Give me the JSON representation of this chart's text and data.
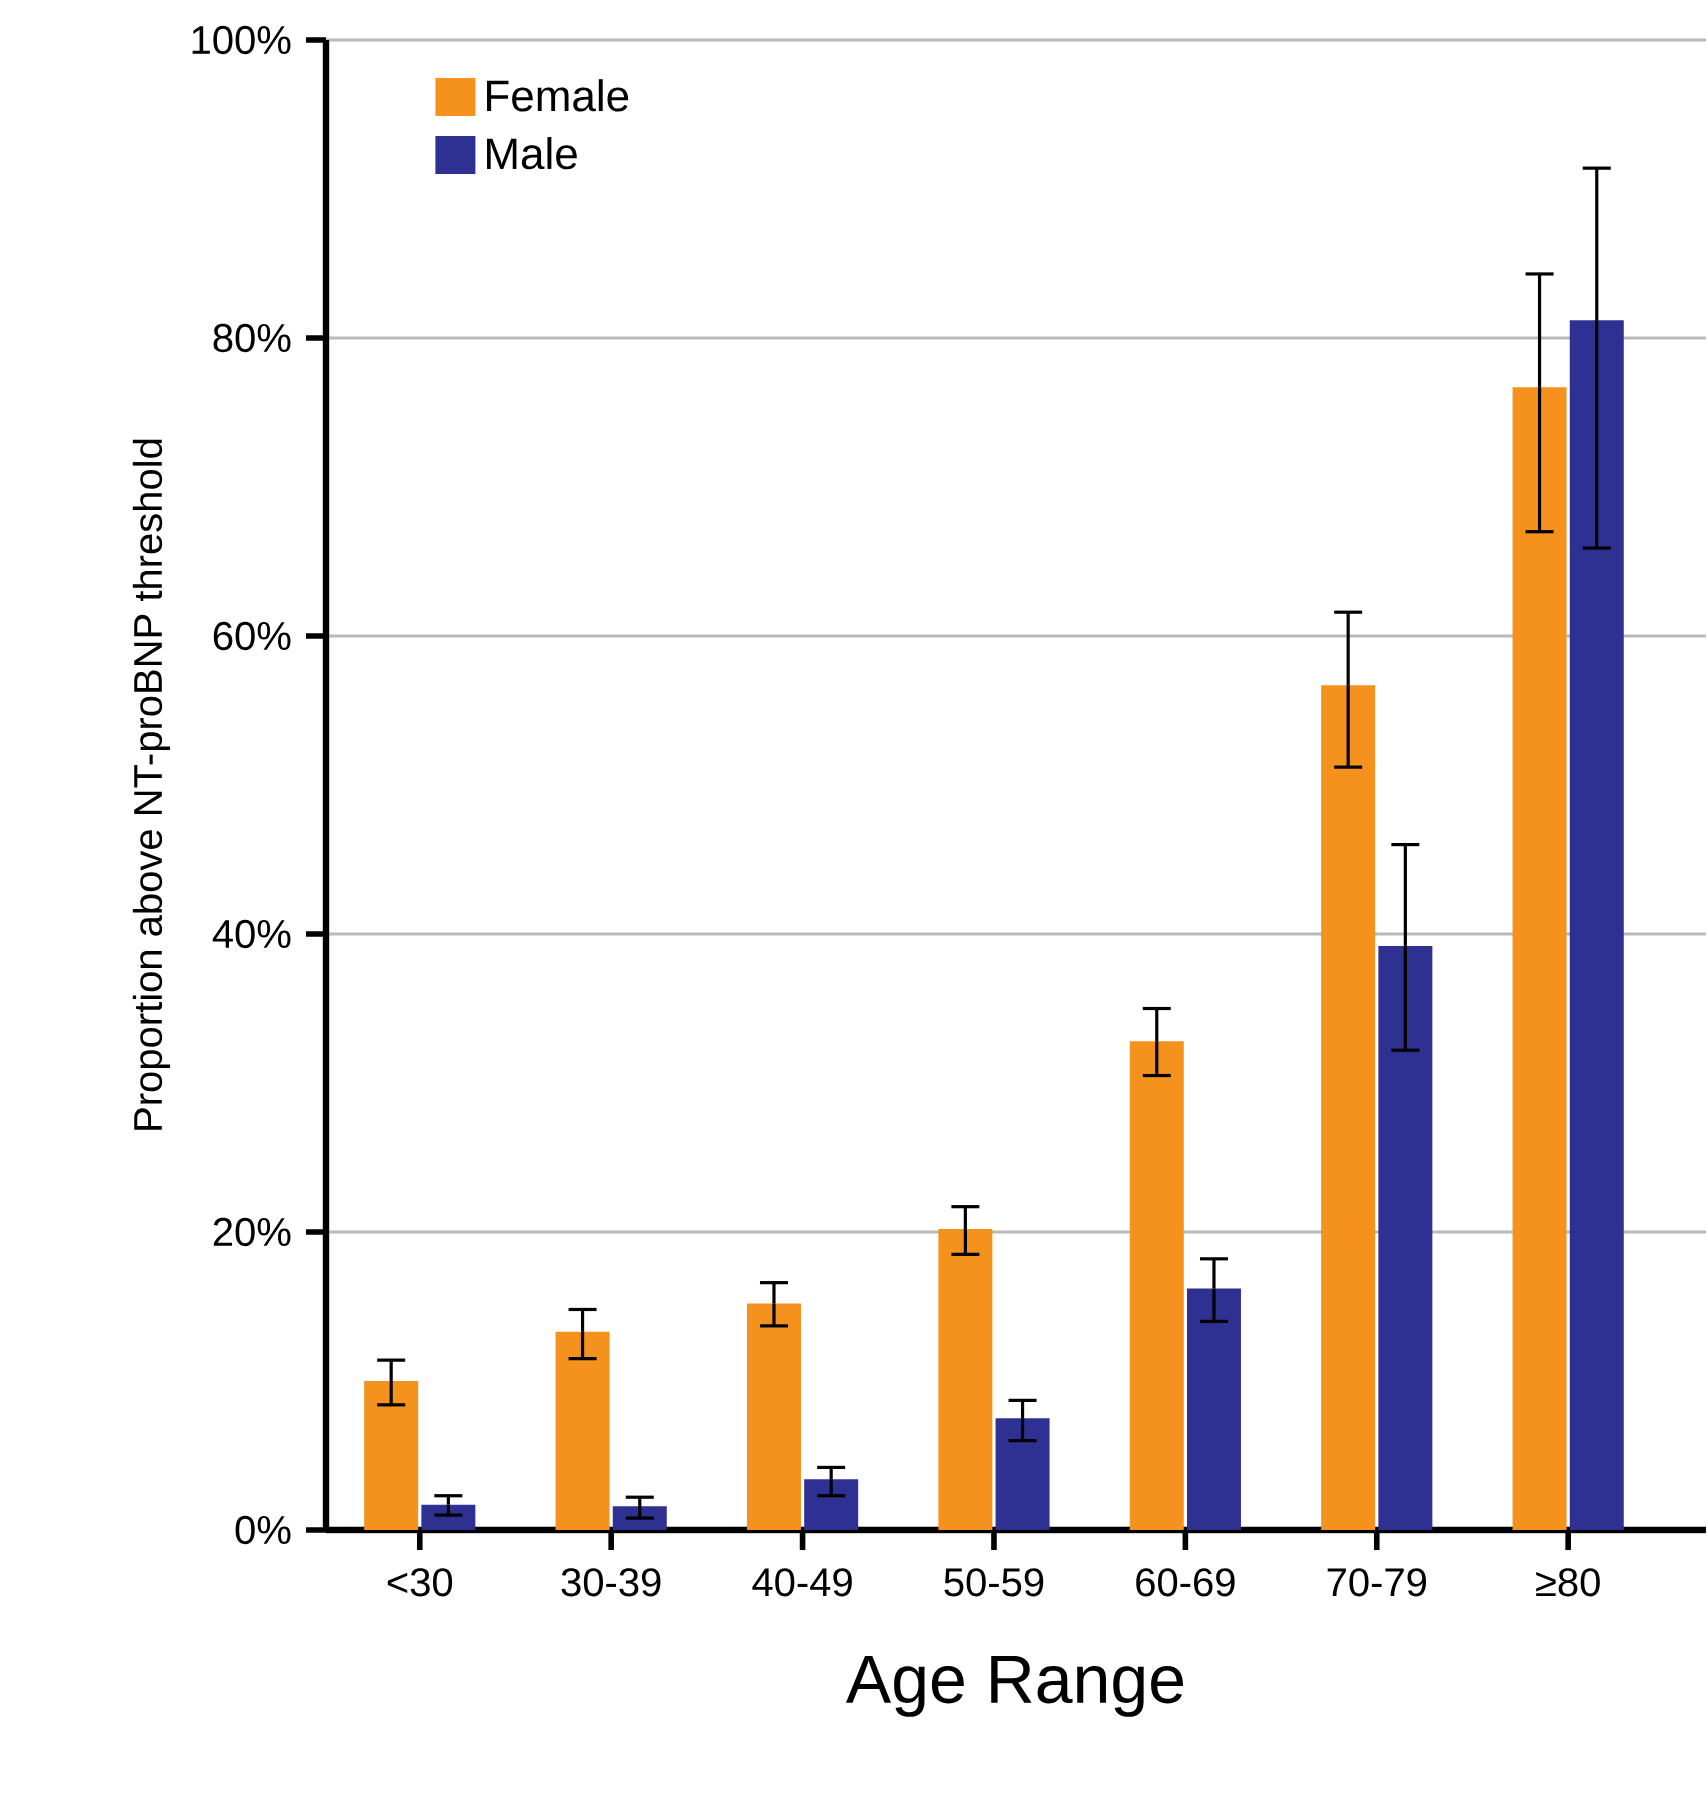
{
  "chart_data": {
    "type": "bar",
    "xlabel": "Age Range",
    "ylabel": "Proportion above NT-proBNP threshold",
    "categories": [
      "<30",
      "30-39",
      "40-49",
      "50-59",
      "60-69",
      "70-79",
      "≥80"
    ],
    "series": [
      {
        "name": "Female",
        "color": "#f5921e",
        "values": [
          10.0,
          13.3,
          15.2,
          20.2,
          32.8,
          56.7,
          76.7
        ],
        "errors": [
          [
            8.4,
            11.4
          ],
          [
            11.5,
            14.8
          ],
          [
            13.7,
            16.6
          ],
          [
            18.5,
            21.7
          ],
          [
            30.5,
            35.0
          ],
          [
            51.2,
            61.6
          ],
          [
            67.0,
            84.3
          ]
        ]
      },
      {
        "name": "Male",
        "color": "#2e3192",
        "values": [
          1.7,
          1.6,
          3.4,
          7.5,
          16.2,
          39.2,
          81.2
        ],
        "errors": [
          [
            1.0,
            2.3
          ],
          [
            0.8,
            2.2
          ],
          [
            2.3,
            4.2
          ],
          [
            6.0,
            8.7
          ],
          [
            14.0,
            18.2
          ],
          [
            32.2,
            46.0
          ],
          [
            65.9,
            91.4
          ]
        ]
      }
    ],
    "ylim": [
      0,
      100
    ],
    "yticks": [
      {
        "value": 0,
        "label": "0%"
      },
      {
        "value": 20,
        "label": "20%"
      },
      {
        "value": 40,
        "label": "40%"
      },
      {
        "value": 60,
        "label": "60%"
      },
      {
        "value": 80,
        "label": "80%"
      },
      {
        "value": 100,
        "label": "100%"
      }
    ],
    "grid": "y",
    "legend": "top left"
  }
}
